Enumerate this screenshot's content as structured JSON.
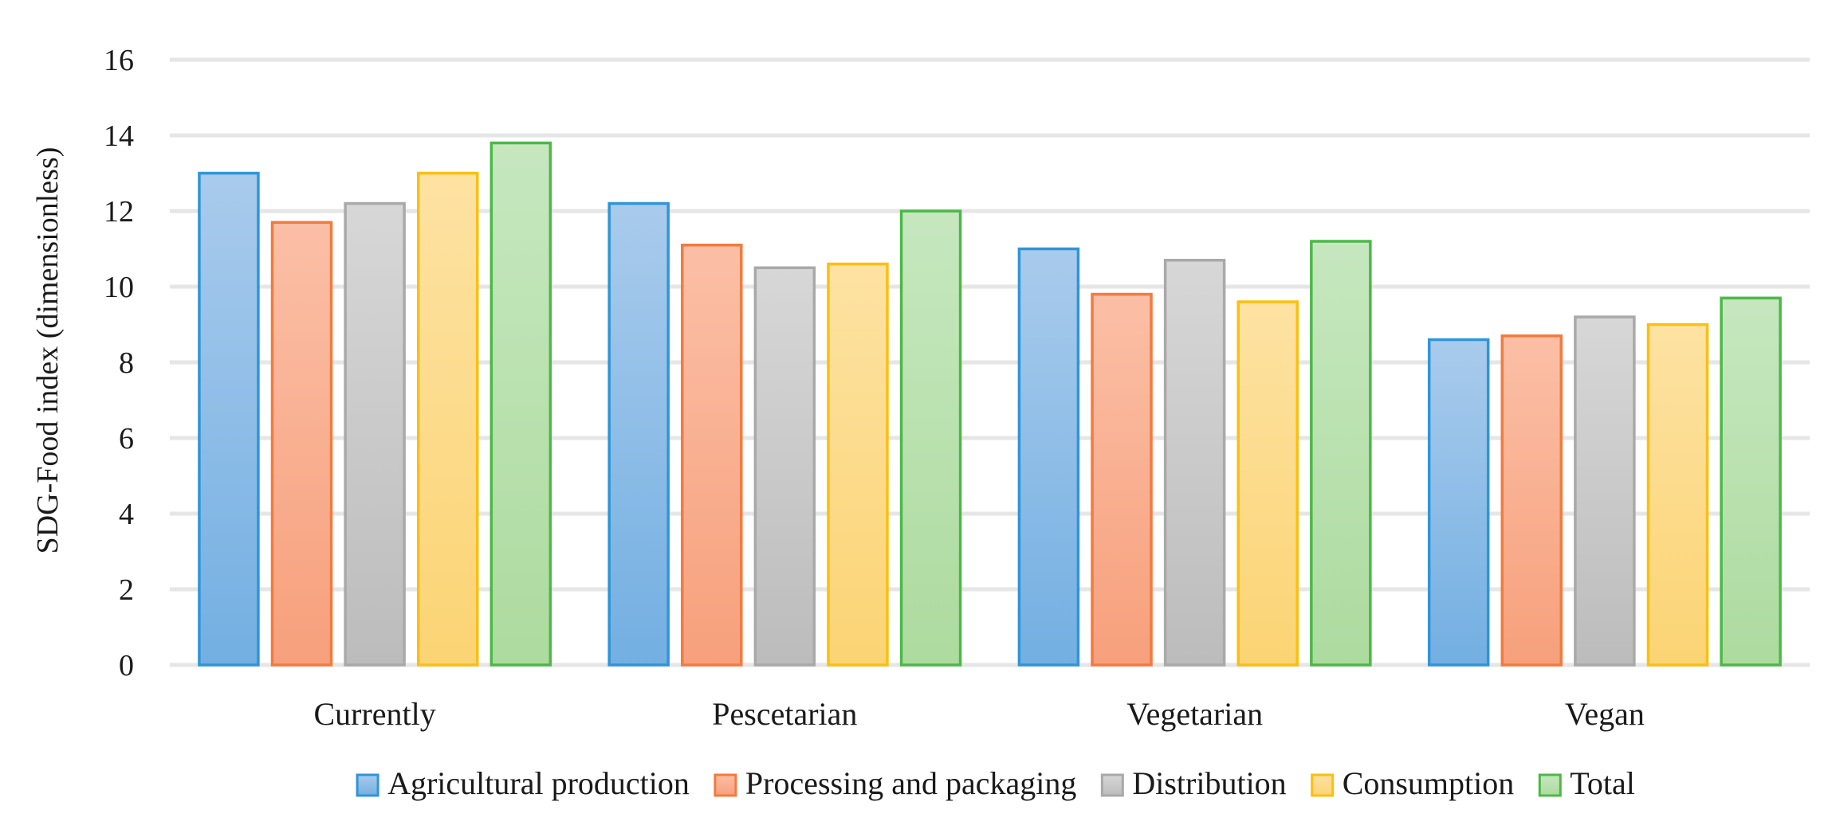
{
  "chart_data": {
    "type": "bar",
    "title": "",
    "xlabel": "",
    "ylabel": "SDG-Food index (dimensionless)",
    "ylim": [
      0,
      16
    ],
    "yticks": [
      0,
      2,
      4,
      6,
      8,
      10,
      12,
      14,
      16
    ],
    "grid": true,
    "legend_position": "bottom",
    "categories": [
      "Currently",
      "Pescetarian",
      "Vegetarian",
      "Vegan"
    ],
    "series": [
      {
        "name": "Agricultural production",
        "values": [
          13.0,
          12.2,
          11.0,
          8.6
        ],
        "fill_top": "#a9cbec",
        "fill_bottom": "#73afe2",
        "stroke": "#2f95d8"
      },
      {
        "name": "Processing and packaging",
        "values": [
          11.7,
          11.1,
          9.8,
          8.7
        ],
        "fill_top": "#fbbfa6",
        "fill_bottom": "#f7a07c",
        "stroke": "#f47a3c"
      },
      {
        "name": "Distribution",
        "values": [
          12.2,
          10.5,
          10.7,
          9.2
        ],
        "fill_top": "#d7d7d7",
        "fill_bottom": "#bcbcbc",
        "stroke": "#a9a9a9"
      },
      {
        "name": "Consumption",
        "values": [
          13.0,
          10.6,
          9.6,
          9.0
        ],
        "fill_top": "#fde2a2",
        "fill_bottom": "#fbd474",
        "stroke": "#fbbf10"
      },
      {
        "name": "Total",
        "values": [
          13.8,
          12.0,
          11.2,
          9.7
        ],
        "fill_top": "#c6e7bf",
        "fill_bottom": "#addb9f",
        "stroke": "#4cb848"
      }
    ]
  }
}
